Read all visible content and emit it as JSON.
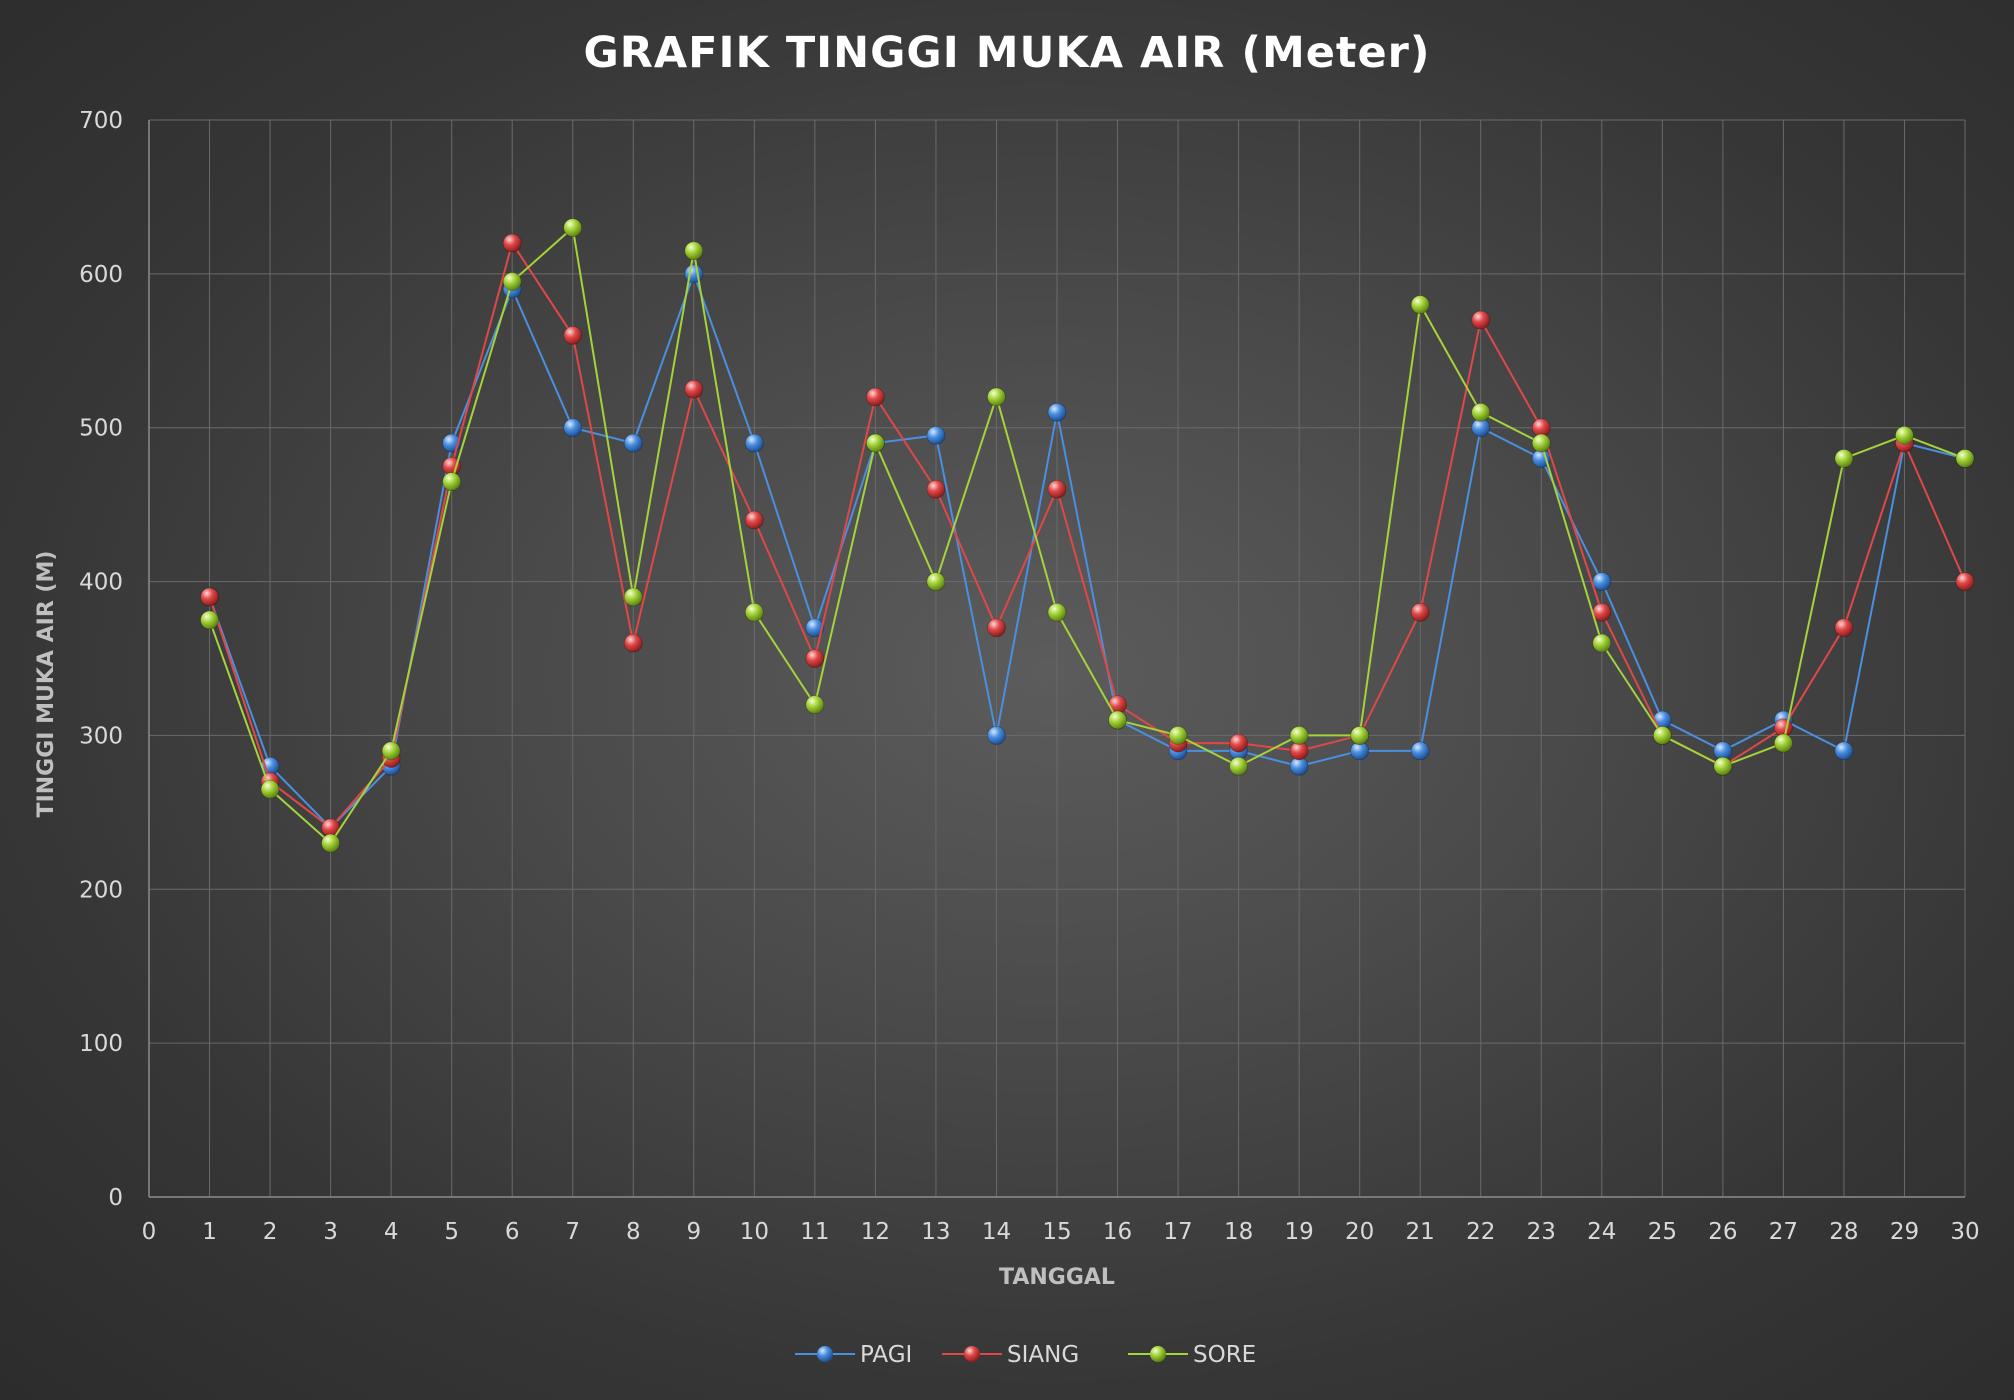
{
  "chart_data": {
    "type": "line",
    "title": "GRAFIK TINGGI MUKA AIR (Meter)",
    "xlabel": "TANGGAL",
    "ylabel": "TINGGI MUKA AIR (M)",
    "xlim": [
      0,
      30
    ],
    "ylim": [
      0,
      700
    ],
    "x_ticks": [
      0,
      1,
      2,
      3,
      4,
      5,
      6,
      7,
      8,
      9,
      10,
      11,
      12,
      13,
      14,
      15,
      16,
      17,
      18,
      19,
      20,
      21,
      22,
      23,
      24,
      25,
      26,
      27,
      28,
      29,
      30
    ],
    "y_ticks": [
      0,
      100,
      200,
      300,
      400,
      500,
      600,
      700
    ],
    "grid": true,
    "legend_position": "bottom",
    "x": [
      1,
      2,
      3,
      4,
      5,
      6,
      7,
      8,
      9,
      10,
      11,
      12,
      13,
      14,
      15,
      16,
      17,
      18,
      19,
      20,
      21,
      22,
      23,
      24,
      25,
      26,
      27,
      28,
      29,
      30
    ],
    "series": [
      {
        "name": "PAGI",
        "color": "#4a8fe0",
        "values": [
          390,
          280,
          240,
          280,
          490,
          590,
          500,
          490,
          600,
          490,
          370,
          490,
          495,
          300,
          510,
          310,
          290,
          290,
          280,
          290,
          290,
          500,
          480,
          400,
          310,
          290,
          310,
          290,
          490,
          480
        ]
      },
      {
        "name": "SIANG",
        "color": "#e04848",
        "values": [
          390,
          270,
          240,
          285,
          475,
          620,
          560,
          360,
          525,
          440,
          350,
          520,
          460,
          370,
          460,
          320,
          295,
          295,
          290,
          300,
          380,
          570,
          500,
          380,
          300,
          280,
          305,
          370,
          490,
          400
        ]
      },
      {
        "name": "SORE",
        "color": "#a4d33a",
        "values": [
          375,
          265,
          230,
          290,
          465,
          595,
          630,
          390,
          615,
          380,
          320,
          490,
          400,
          520,
          380,
          310,
          300,
          280,
          300,
          300,
          580,
          510,
          490,
          360,
          300,
          280,
          295,
          480,
          495,
          480
        ]
      }
    ]
  }
}
